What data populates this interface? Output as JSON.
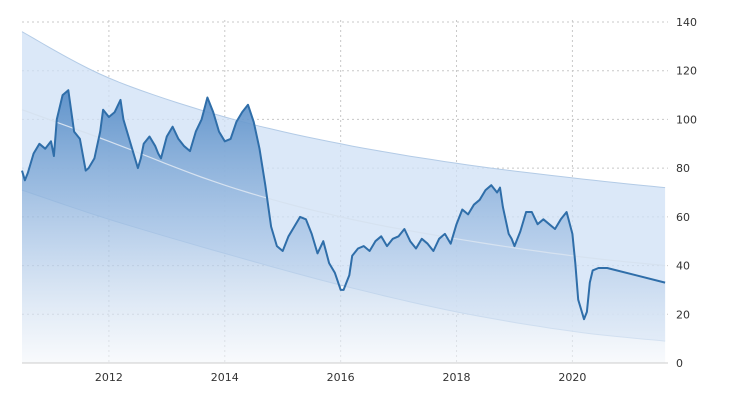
{
  "chart_data": {
    "type": "area",
    "title": "",
    "xlabel": "",
    "ylabel": "",
    "xlim": [
      2010.5,
      2021.65
    ],
    "ylim": [
      0,
      140
    ],
    "grid": true,
    "x_ticks": [
      {
        "value": 2012,
        "label": "2012"
      },
      {
        "value": 2014,
        "label": "2014"
      },
      {
        "value": 2016,
        "label": "2016"
      },
      {
        "value": 2018,
        "label": "2018"
      },
      {
        "value": 2020,
        "label": "2020"
      }
    ],
    "y_ticks": [
      {
        "value": 0,
        "label": "0"
      },
      {
        "value": 20,
        "label": "20"
      },
      {
        "value": 40,
        "label": "40"
      },
      {
        "value": 60,
        "label": "60"
      },
      {
        "value": 80,
        "label": "80"
      },
      {
        "value": 100,
        "label": "100"
      },
      {
        "value": 120,
        "label": "120"
      },
      {
        "value": 140,
        "label": "140"
      }
    ],
    "trend_band": {
      "x": [
        2010.5,
        2012.0,
        2014.0,
        2016.0,
        2018.0,
        2020.0,
        2021.6
      ],
      "upper": [
        136,
        117,
        101,
        90,
        82,
        76,
        72
      ],
      "lower": [
        71,
        59,
        45,
        32,
        21,
        13,
        9
      ],
      "center": [
        104,
        91,
        73,
        60,
        51,
        44,
        40
      ]
    },
    "series": [
      {
        "x": [
          2010.5,
          2010.55,
          2010.6,
          2010.7,
          2010.8,
          2010.9,
          2011.0,
          2011.05,
          2011.1,
          2011.2,
          2011.3,
          2011.4,
          2011.5,
          2011.6,
          2011.65,
          2011.75,
          2011.85,
          2011.9,
          2012.0,
          2012.1,
          2012.2,
          2012.25,
          2012.3,
          2012.4,
          2012.5,
          2012.55,
          2012.6,
          2012.7,
          2012.8,
          2012.85,
          2012.9,
          2013.0,
          2013.1,
          2013.2,
          2013.3,
          2013.4,
          2013.5,
          2013.6,
          2013.7,
          2013.8,
          2013.9,
          2014.0,
          2014.1,
          2014.2,
          2014.3,
          2014.4,
          2014.5,
          2014.6,
          2014.7,
          2014.8,
          2014.9,
          2015.0,
          2015.1,
          2015.2,
          2015.3,
          2015.4,
          2015.5,
          2015.6,
          2015.7,
          2015.8,
          2015.9,
          2016.0,
          2016.05,
          2016.1,
          2016.15,
          2016.2,
          2016.3,
          2016.4,
          2016.5,
          2016.6,
          2016.7,
          2016.8,
          2016.9,
          2017.0,
          2017.1,
          2017.2,
          2017.3,
          2017.4,
          2017.5,
          2017.6,
          2017.7,
          2017.8,
          2017.9,
          2018.0,
          2018.1,
          2018.2,
          2018.3,
          2018.4,
          2018.5,
          2018.6,
          2018.7,
          2018.75,
          2018.8,
          2018.9,
          2018.95,
          2019.0,
          2019.1,
          2019.2,
          2019.3,
          2019.4,
          2019.5,
          2019.6,
          2019.7,
          2019.8,
          2019.9,
          2020.0,
          2020.05,
          2020.1,
          2020.15,
          2020.2,
          2020.25,
          2020.3,
          2020.35,
          2020.45,
          2020.6,
          2021.6
        ],
        "values": [
          79,
          75,
          78,
          86,
          90,
          88,
          91,
          85,
          100,
          110,
          112,
          95,
          92,
          79,
          80,
          84,
          95,
          104,
          101,
          103,
          108,
          100,
          96,
          88,
          80,
          84,
          90,
          93,
          89,
          86,
          84,
          93,
          97,
          92,
          89,
          87,
          95,
          100,
          109,
          103,
          95,
          91,
          92,
          99,
          103,
          106,
          99,
          88,
          73,
          56,
          48,
          46,
          52,
          56,
          60,
          59,
          53,
          45,
          50,
          41,
          37,
          30,
          30,
          33,
          36,
          44,
          47,
          48,
          46,
          50,
          52,
          48,
          51,
          52,
          55,
          50,
          47,
          51,
          49,
          46,
          51,
          53,
          49,
          57,
          63,
          61,
          65,
          67,
          71,
          73,
          70,
          72,
          64,
          53,
          51,
          48,
          54,
          62,
          62,
          57,
          59,
          57,
          55,
          59,
          62,
          53,
          41,
          26,
          22,
          18,
          21,
          33,
          38,
          39,
          39,
          33
        ]
      }
    ]
  }
}
